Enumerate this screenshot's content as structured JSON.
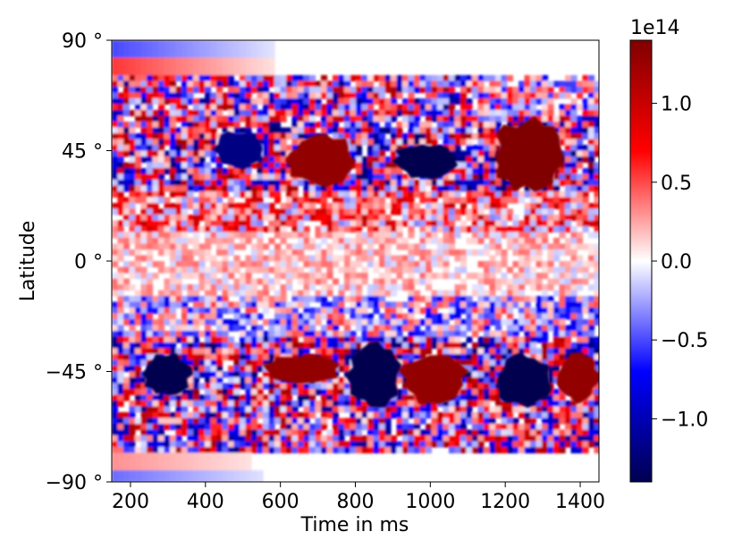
{
  "chart_data": {
    "type": "heatmap",
    "title": "",
    "xlabel": "Time in ms",
    "ylabel": "Latitude",
    "xlim": [
      150,
      1450
    ],
    "ylim": [
      -90,
      90
    ],
    "x_ticks": [
      200,
      400,
      600,
      800,
      1000,
      1200,
      1400
    ],
    "x_tick_labels": [
      "200",
      "400",
      "600",
      "800",
      "1000",
      "1200",
      "1400"
    ],
    "y_ticks": [
      90,
      45,
      0,
      -45,
      -90
    ],
    "y_tick_labels": [
      "90 °",
      "45 °",
      "0 °",
      "−45 °",
      "−90 °"
    ],
    "colormap": "seismic",
    "colors": {
      "min": "#000050",
      "low": "#0000ff",
      "mid": "#ffffff",
      "high": "#ff0000",
      "max": "#800000"
    },
    "colorbar": {
      "range": [
        -1.4,
        1.4
      ],
      "ticks": [
        1.0,
        0.5,
        0.0,
        -0.5,
        -1.0
      ],
      "tick_labels": [
        "1.0",
        "0.5",
        "0.0",
        "−0.5",
        "−1.0"
      ],
      "offset_label": "1e14"
    },
    "features": [
      {
        "time_start": 620,
        "time_end": 800,
        "lat_start": 30,
        "lat_end": 52,
        "value": 1.3
      },
      {
        "time_start": 1170,
        "time_end": 1360,
        "lat_start": 28,
        "lat_end": 58,
        "value": 1.4
      },
      {
        "time_start": 420,
        "time_end": 560,
        "lat_start": 38,
        "lat_end": 53,
        "value": -1.2
      },
      {
        "time_start": 900,
        "time_end": 1080,
        "lat_start": 34,
        "lat_end": 48,
        "value": -1.4
      },
      {
        "time_start": 230,
        "time_end": 360,
        "lat_start": -55,
        "lat_end": -37,
        "value": -1.4
      },
      {
        "time_start": 780,
        "time_end": 920,
        "lat_start": -60,
        "lat_end": -33,
        "value": -1.4
      },
      {
        "time_start": 1180,
        "time_end": 1320,
        "lat_start": -60,
        "lat_end": -38,
        "value": -1.4
      },
      {
        "time_start": 560,
        "time_end": 760,
        "lat_start": -50,
        "lat_end": -38,
        "value": 1.3
      },
      {
        "time_start": 920,
        "time_end": 1100,
        "lat_start": -58,
        "lat_end": -38,
        "value": 1.3
      },
      {
        "time_start": 1340,
        "time_end": 1450,
        "lat_start": -58,
        "lat_end": -36,
        "value": 1.3
      }
    ]
  }
}
